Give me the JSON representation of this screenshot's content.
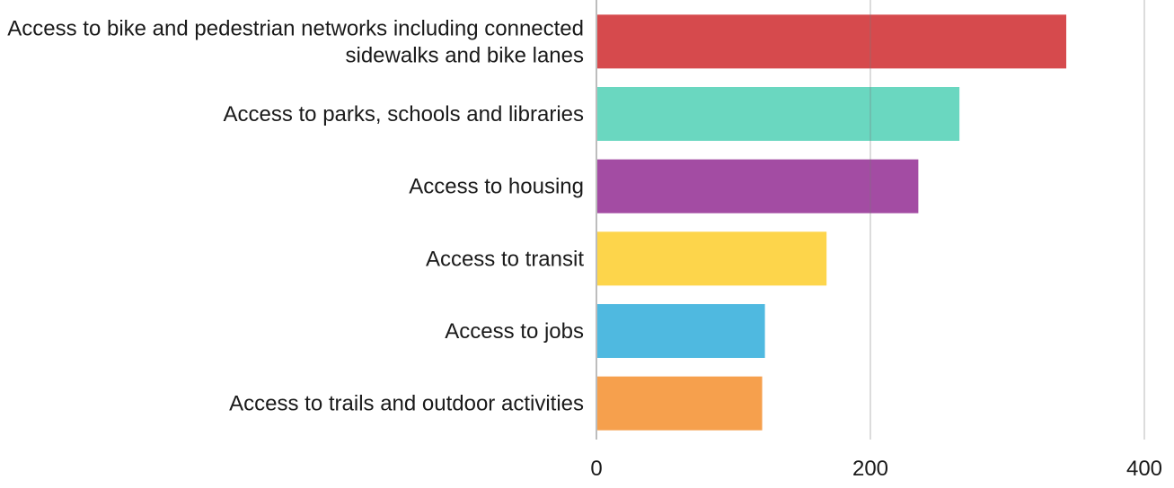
{
  "chart_data": {
    "type": "bar",
    "orientation": "horizontal",
    "title": "",
    "xlabel": "",
    "ylabel": "",
    "categories": [
      [
        "Access to bike and pedestrian networks including connected",
        "sidewalks and bike lanes"
      ],
      [
        "Access to parks, schools and libraries"
      ],
      [
        "Access to housing"
      ],
      [
        "Access to transit"
      ],
      [
        "Access to jobs"
      ],
      [
        "Access to trails and outdoor activities"
      ]
    ],
    "values": [
      343,
      265,
      235,
      168,
      123,
      121
    ],
    "colors": [
      "#d64a4d",
      "#6ad7c0",
      "#a34ca3",
      "#fdd54b",
      "#4fb9e0",
      "#f6a04d"
    ],
    "xlim": [
      0,
      400
    ],
    "xticks": [
      0,
      200,
      400
    ],
    "xtick_labels": [
      "0",
      "200",
      "400"
    ],
    "grid": "vertical",
    "legend": "none"
  }
}
